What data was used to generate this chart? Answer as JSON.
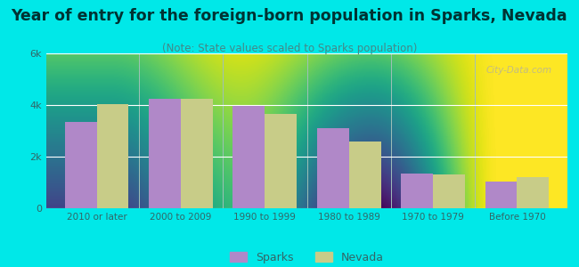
{
  "title": "Year of entry for the foreign-born population in Sparks, Nevada",
  "subtitle": "(Note: State values scaled to Sparks population)",
  "categories": [
    "2010 or later",
    "2000 to 2009",
    "1990 to 1999",
    "1980 to 1989",
    "1970 to 1979",
    "Before 1970"
  ],
  "sparks_values": [
    3350,
    4250,
    3950,
    3100,
    1350,
    1050
  ],
  "nevada_values": [
    4050,
    4250,
    3650,
    2600,
    1300,
    1200
  ],
  "sparks_color": "#b088c8",
  "nevada_color": "#c8cc88",
  "background_outer": "#00e8e8",
  "ylim": [
    0,
    6000
  ],
  "yticks": [
    0,
    2000,
    4000,
    6000
  ],
  "ytick_labels": [
    "0",
    "2k",
    "4k",
    "6k"
  ],
  "bar_width": 0.38,
  "title_fontsize": 12.5,
  "subtitle_fontsize": 8.5,
  "legend_labels": [
    "Sparks",
    "Nevada"
  ],
  "watermark": "City-Data.com",
  "tick_color": "#336666",
  "title_color": "#003333",
  "subtitle_color": "#448888"
}
